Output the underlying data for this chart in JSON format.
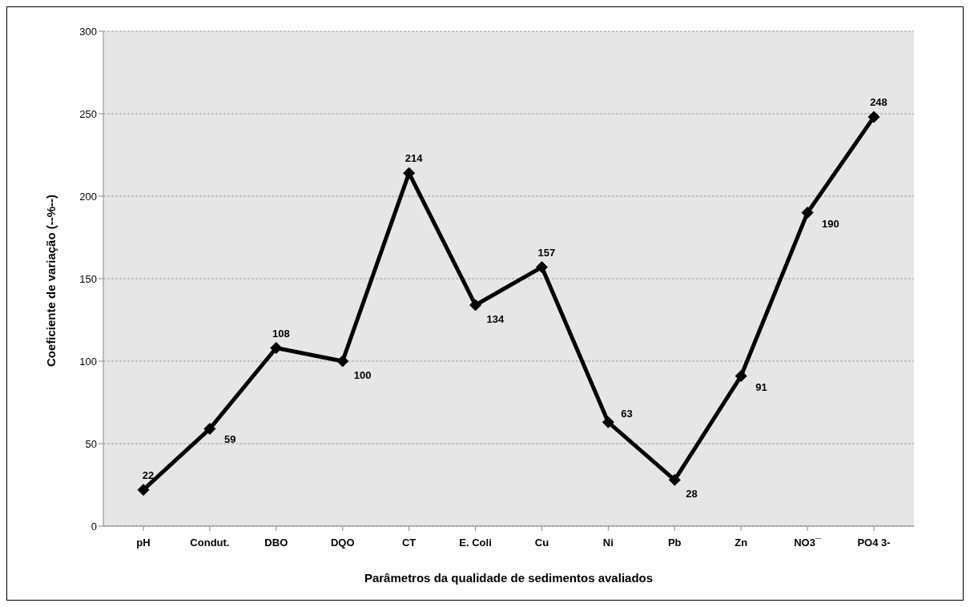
{
  "chart_data": {
    "type": "line",
    "xlabel": "Parâmetros da qualidade de sedimentos avaliados",
    "ylabel": "Coeficiente de variação (--%--)",
    "categories": [
      "pH",
      "Condut.",
      "DBO",
      "DQO",
      "CT",
      "E. Coli",
      "Cu",
      "Ni",
      "Pb",
      "Zn",
      "NO3¯",
      "PO4 3-"
    ],
    "series": [
      {
        "color": "#000000",
        "values": [
          22,
          59,
          108,
          100,
          214,
          134,
          157,
          63,
          28,
          91,
          190,
          248
        ]
      }
    ],
    "ylim": [
      0,
      300
    ],
    "yticks": [
      0,
      50,
      100,
      150,
      200,
      250,
      300
    ],
    "grid": "y",
    "marker": "diamond",
    "line_style": "solid",
    "data_labels": true
  }
}
